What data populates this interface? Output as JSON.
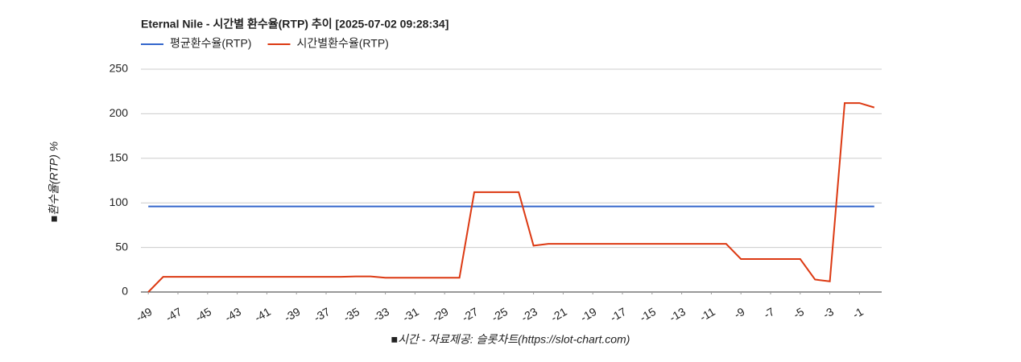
{
  "chart_data": {
    "type": "line",
    "title": "Eternal Nile - 시간별 환수율(RTP) 추이 [2025-07-02 09:28:34]",
    "y_label": "■환수율(RTP) %",
    "x_label": "■시간 - 자료제공: 슬롯차트(https://slot-chart.com)",
    "x": [
      -49,
      -48,
      -47,
      -46,
      -45,
      -44,
      -43,
      -42,
      -41,
      -40,
      -39,
      -38,
      -37,
      -36,
      -35,
      -34,
      -33,
      -32,
      -31,
      -30,
      -29,
      -28,
      -27,
      -26,
      -25,
      -24,
      -23,
      -22,
      -21,
      -20,
      -19,
      -18,
      -17,
      -16,
      -15,
      -14,
      -13,
      -12,
      -11,
      -10,
      -9,
      -8,
      -7,
      -6,
      -5,
      -4,
      -3,
      -2,
      -1,
      0
    ],
    "series": [
      {
        "name": "평균환수율(RTP)",
        "color": "#3366cc",
        "values": [
          96,
          96,
          96,
          96,
          96,
          96,
          96,
          96,
          96,
          96,
          96,
          96,
          96,
          96,
          96,
          96,
          96,
          96,
          96,
          96,
          96,
          96,
          96,
          96,
          96,
          96,
          96,
          96,
          96,
          96,
          96,
          96,
          96,
          96,
          96,
          96,
          96,
          96,
          96,
          96,
          96,
          96,
          96,
          96,
          96,
          96,
          96,
          96,
          96,
          96
        ]
      },
      {
        "name": "시간별환수율(RTP)",
        "color": "#dc3912",
        "values": [
          0,
          17,
          17,
          17,
          17,
          17,
          17,
          17,
          17,
          17,
          17,
          17,
          17,
          17,
          17.5,
          17.5,
          16,
          16,
          16,
          16,
          16,
          16,
          112,
          112,
          112,
          112,
          52,
          54,
          54,
          54,
          54,
          54,
          54,
          54,
          54,
          54,
          54,
          54,
          54,
          54,
          37,
          37,
          37,
          37,
          37,
          14,
          12,
          212,
          212,
          207
        ]
      }
    ],
    "xlim": [
      -49.5,
      0.5
    ],
    "xticks": [
      -49,
      -47,
      -45,
      -43,
      -41,
      -39,
      -37,
      -35,
      -33,
      -31,
      -29,
      -27,
      -25,
      -23,
      -21,
      -19,
      -17,
      -15,
      -13,
      -11,
      -9,
      -7,
      -5,
      -3,
      -1
    ],
    "ylim": [
      0,
      250
    ],
    "yticks": [
      0,
      50,
      100,
      150,
      200,
      250
    ],
    "grid": true,
    "legend": "top"
  }
}
